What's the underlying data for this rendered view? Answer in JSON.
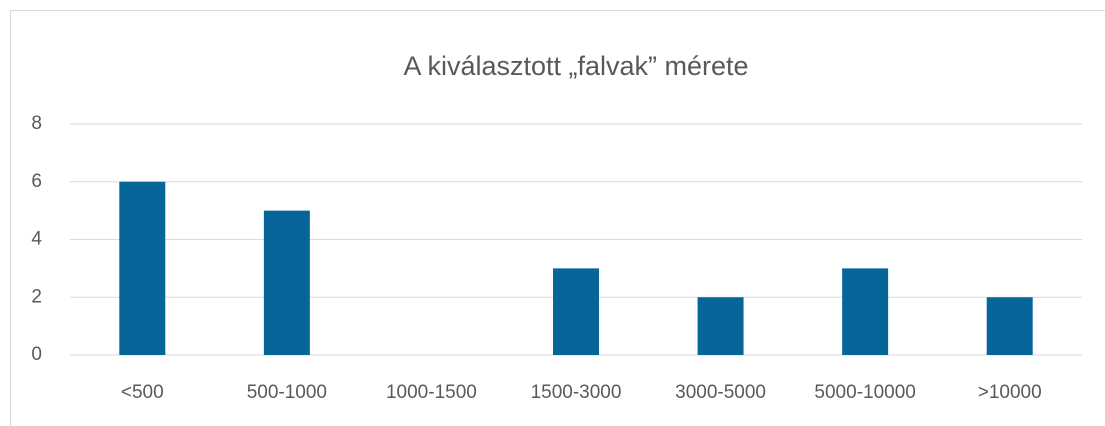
{
  "chart_data": {
    "type": "bar",
    "title": "A kiválasztott „falvak” mérete",
    "categories": [
      "<500",
      "500-1000",
      "1000-1500",
      "1500-3000",
      "3000-5000",
      "5000-10000",
      ">10000"
    ],
    "values": [
      6,
      5,
      0,
      3,
      2,
      3,
      2
    ],
    "color": "#076699",
    "ylim": [
      0,
      8
    ],
    "yticks": [
      0,
      2,
      4,
      6,
      8
    ],
    "grid": true
  }
}
